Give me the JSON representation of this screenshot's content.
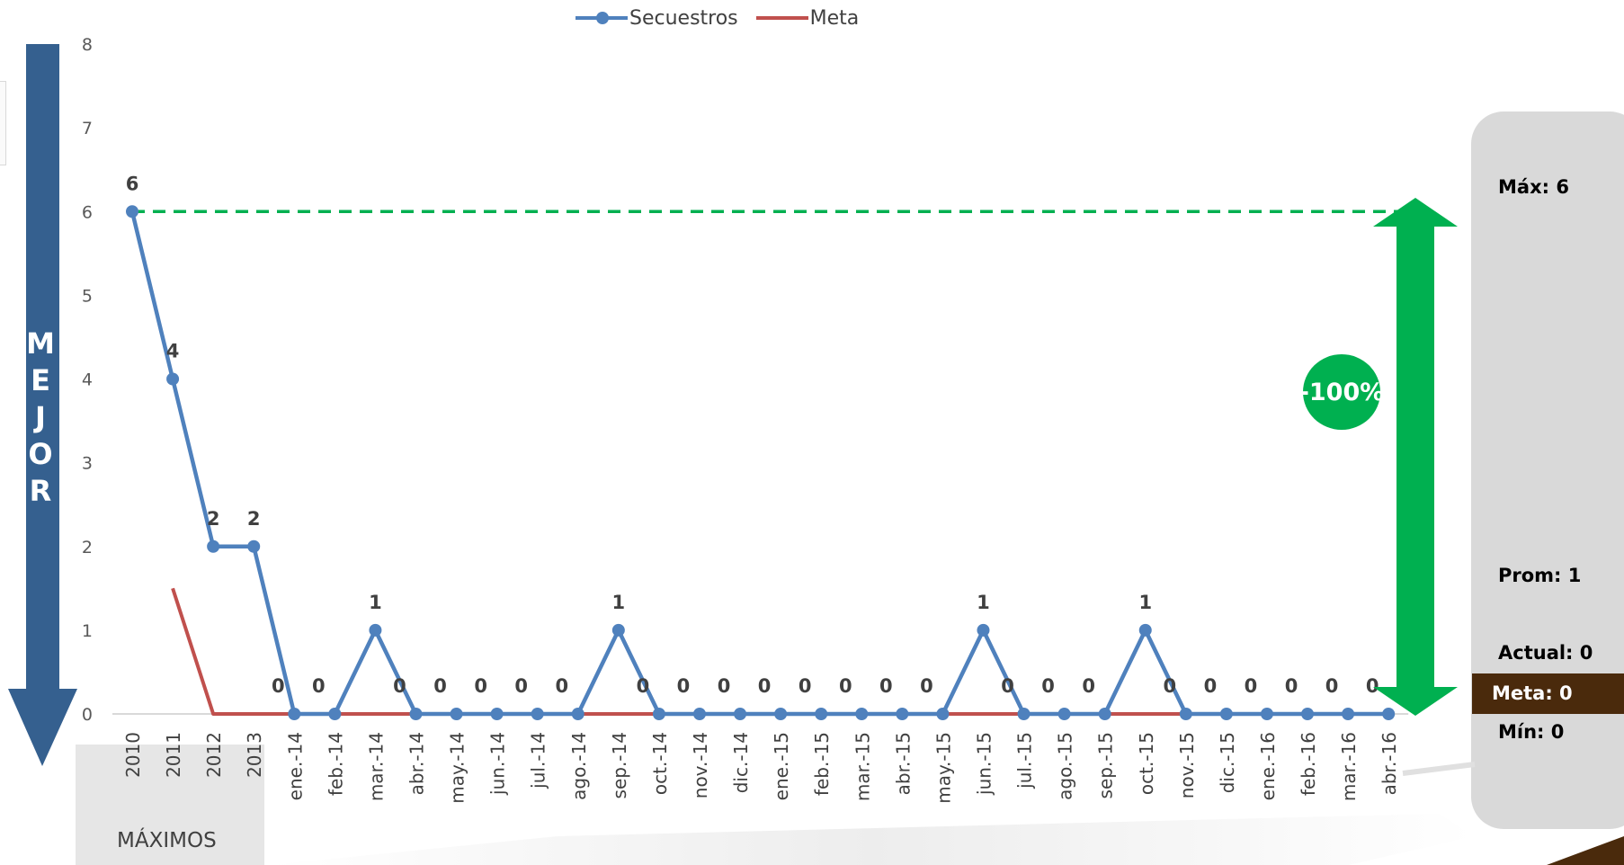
{
  "chart_data": {
    "type": "line",
    "categories": [
      "2010",
      "2011",
      "2012",
      "2013",
      "ene.-14",
      "feb.-14",
      "mar.-14",
      "abr.-14",
      "may.-14",
      "jun.-14",
      "jul.-14",
      "ago.-14",
      "sep.-14",
      "oct.-14",
      "nov.-14",
      "dic.-14",
      "ene.-15",
      "feb.-15",
      "mar.-15",
      "abr.-15",
      "may.-15",
      "jun.-15",
      "jul.-15",
      "ago.-15",
      "sep.-15",
      "oct.-15",
      "nov.-15",
      "dic.-15",
      "ene.-16",
      "feb.-16",
      "mar.-16",
      "abr.-16"
    ],
    "series": [
      {
        "name": "Secuestros",
        "color": "#4f81bd",
        "marker": "circle",
        "values": [
          6,
          4,
          2,
          2,
          0,
          0,
          1,
          0,
          0,
          0,
          0,
          0,
          1,
          0,
          0,
          0,
          0,
          0,
          0,
          0,
          0,
          1,
          0,
          0,
          0,
          1,
          0,
          0,
          0,
          0,
          0,
          0
        ],
        "data_labels": [
          "6",
          "4",
          "2",
          "2",
          "0",
          "0",
          "1",
          "0",
          "0",
          "0",
          "0",
          "0",
          "1",
          "0",
          "0",
          "0",
          "0",
          "0",
          "0",
          "0",
          "0",
          "1",
          "0",
          "0",
          "0",
          "1",
          "0",
          "0",
          "0",
          "0",
          "0",
          "0"
        ]
      },
      {
        "name": "Meta",
        "color": "#c0504d",
        "values": [
          null,
          1.5,
          0,
          0,
          0,
          0,
          0,
          0,
          0,
          0,
          0,
          0,
          0,
          0,
          0,
          0,
          0,
          0,
          0,
          0,
          0,
          0,
          0,
          0,
          0,
          0,
          0,
          0,
          0,
          0,
          0,
          0
        ]
      }
    ],
    "yticks": [
      "0",
      "1",
      "2",
      "3",
      "4",
      "5",
      "6",
      "7",
      "8"
    ],
    "ylim": [
      0,
      8
    ],
    "max_reference_line": 6,
    "grid": false,
    "legend_position": "top"
  },
  "direction_label": "MEJOR",
  "direction_letters": [
    "M",
    "E",
    "J",
    "O",
    "R"
  ],
  "change_badge": "-100%",
  "max_panel_label": "MÁXIMOS",
  "stats": {
    "max": "Máx:  6",
    "prom": "Prom: 1",
    "actual": "Actual: 0",
    "meta": "Meta: 0",
    "min": "Mín: 0"
  },
  "colors": {
    "arrow_blue": "#35608f",
    "green": "#00b050",
    "meta_band": "#4a2a0c",
    "panel_gray": "#d9d9d9"
  }
}
